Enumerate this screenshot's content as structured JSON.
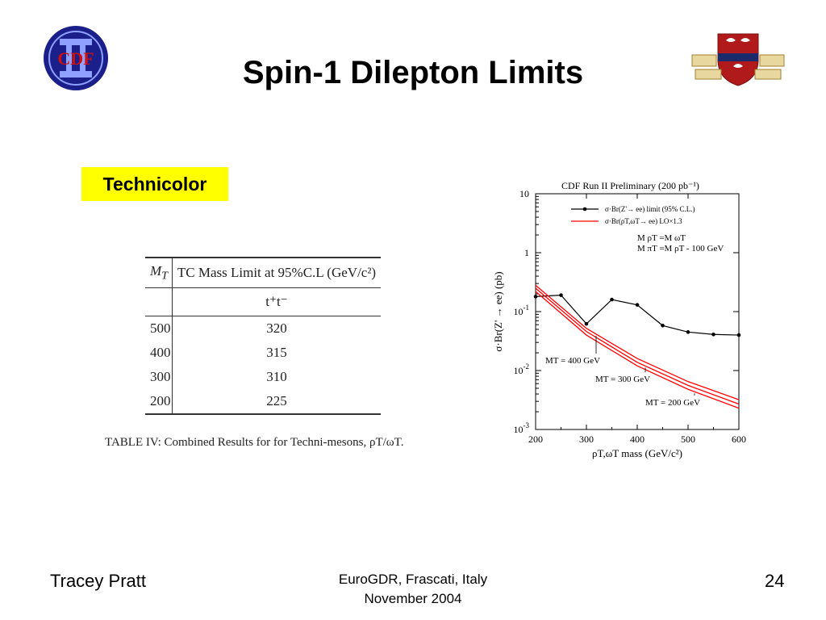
{
  "slide": {
    "title": "Spin-1 Dilepton Limits",
    "tag": "Technicolor",
    "logo_left_text": "CDF",
    "logo_right_words": [
      "HARC",
      "POENI",
      "OTIA",
      "STUDIA",
      "PUDIES"
    ]
  },
  "table": {
    "col1_header": "M",
    "col1_sub": "T",
    "col2_header": "TC Mass Limit at 95%C.L (GeV/c²)",
    "col2_sub": "t⁺t⁻",
    "rows": [
      {
        "mt": "500",
        "limit": "320"
      },
      {
        "mt": "400",
        "limit": "315"
      },
      {
        "mt": "300",
        "limit": "310"
      },
      {
        "mt": "200",
        "limit": "225"
      }
    ],
    "caption": "TABLE IV: Combined Results for for Techni-mesons, ρT/ωT."
  },
  "footer": {
    "left": "Tracey Pratt",
    "center_line1": "EuroGDR, Frascati, Italy",
    "center_line2": "November 2004",
    "page": "24"
  },
  "chart_data": {
    "type": "line",
    "title": "CDF Run II Preliminary (200 pb⁻¹)",
    "xlabel": "ρT,ωT mass (GeV/c²)",
    "ylabel": "σ·Br(Z' → ee) (pb)",
    "xlim": [
      200,
      600
    ],
    "ylim": [
      0.001,
      10
    ],
    "yscale": "log",
    "x_ticks": [
      "200",
      "300",
      "400",
      "500",
      "600"
    ],
    "y_ticks": [
      {
        "base": "10",
        "exp": "-3",
        "value": 0.001
      },
      {
        "base": "10",
        "exp": "-2",
        "value": 0.01
      },
      {
        "base": "10",
        "exp": "-1",
        "value": 0.1
      },
      {
        "base": "1",
        "exp": "",
        "value": 1
      },
      {
        "base": "10",
        "exp": "",
        "value": 10
      }
    ],
    "legend_position": "top-right",
    "series": [
      {
        "name": "σ·Br(Z'→ ee) limit (95% C.L.)",
        "color": "#000000",
        "markers": true,
        "x": [
          200,
          250,
          300,
          350,
          400,
          450,
          500,
          550,
          600
        ],
        "y": [
          0.18,
          0.19,
          0.062,
          0.16,
          0.13,
          0.058,
          0.045,
          0.041,
          0.04
        ]
      },
      {
        "name": "σ·Br(ρT,ωT→ ee) LO×1.3",
        "color": "#ff0000",
        "markers": false,
        "x": [
          200,
          300,
          400,
          500,
          600
        ],
        "curves": [
          {
            "label": "MT = 400 GeV",
            "y": [
              0.28,
              0.052,
              0.016,
              0.0065,
              0.0032
            ]
          },
          {
            "label": "MT = 300 GeV",
            "y": [
              0.25,
              0.046,
              0.0138,
              0.0056,
              0.0027
            ]
          },
          {
            "label": "MT = 200 GeV",
            "y": [
              0.22,
              0.04,
              0.012,
              0.0048,
              0.0023
            ]
          }
        ]
      }
    ],
    "annotation_lines": [
      "M ρT =M ωT",
      "M πT =M ρT - 100 GeV"
    ]
  }
}
